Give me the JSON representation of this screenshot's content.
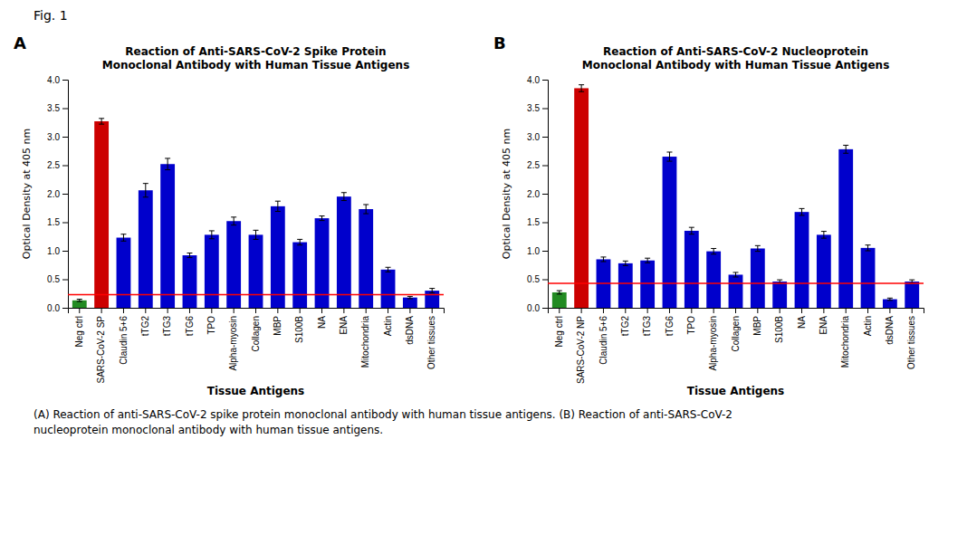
{
  "annotations": [
    "Fig. 1",
    "(A) Reaction of anti-SARS-CoV-2 spike protein monoclonal antibody with human tissue antigens. (B) Reaction of anti-SARS-CoV-2",
    "nucleoprotein monoclonal antibody with human tissue antigens."
  ],
  "chart_data": [
    {
      "type": "bar",
      "title": "Reaction of Anti-SARS-CoV-2 Spike Protein\nMonoclonal Antibody with Human Tissue Antigens",
      "annotations": [
        "A"
      ],
      "xlabel": "Tissue Antigens",
      "ylabel": "Optical Density at 405 nm",
      "categories": [
        "Neg ctrl",
        "SARS-CoV-2 SP",
        "Claudin 5+6",
        "tTG2",
        "tTG3",
        "tTG6",
        "TPO",
        "Alpha-myosin",
        "Collagen",
        "MBP",
        "S100B",
        "NA",
        "ENA",
        "Mitochondria",
        "Actin",
        "dsDNA",
        "Other tissues"
      ],
      "values": [
        0.13,
        3.27,
        1.23,
        2.06,
        2.52,
        0.92,
        1.28,
        1.52,
        1.28,
        1.78,
        1.15,
        1.57,
        1.95,
        1.73,
        0.67,
        0.18,
        0.3
      ],
      "errors": [
        0.02,
        0.05,
        0.06,
        0.12,
        0.1,
        0.04,
        0.07,
        0.07,
        0.08,
        0.09,
        0.05,
        0.04,
        0.07,
        0.08,
        0.04,
        0.02,
        0.04
      ],
      "colors": [
        "#228B22",
        "#CC0000",
        "#0000CC",
        "#0000CC",
        "#0000CC",
        "#0000CC",
        "#0000CC",
        "#0000CC",
        "#0000CC",
        "#0000CC",
        "#0000CC",
        "#0000CC",
        "#0000CC",
        "#0000CC",
        "#0000CC",
        "#0000CC",
        "#0000CC"
      ],
      "threshold": 0.23,
      "ylim": [
        0,
        4.0
      ],
      "yticks": [
        {
          "value": 0.0,
          "label": "0.0"
        },
        0.5,
        {
          "value": 1.0,
          "label": "1.0"
        },
        1.5,
        {
          "value": 2.0,
          "label": "2.0"
        },
        2.5,
        {
          "value": 3.0,
          "label": "3.0"
        },
        3.5,
        {
          "value": 4.0,
          "label": "4.0"
        }
      ]
    },
    {
      "type": "bar",
      "title": "Reaction of Anti-SARS-CoV-2 Nucleoprotein\nMonoclonal Antibody with Human Tissue Antigens",
      "annotations": [
        "B"
      ],
      "xlabel": "Tissue Antigens",
      "ylabel": "Optical Density at 405 nm",
      "categories": [
        "Neg ctrl",
        "SARS-CoV-2 NP",
        "Claudin 5+6",
        "tTG2",
        "tTG3",
        "tTG6",
        "TPO",
        "Alpha-myosin",
        "Collagen",
        "MBP",
        "S100B",
        "NA",
        "ENA",
        "Mitochondria",
        "Actin",
        "dsDNA",
        "Other tissues"
      ],
      "values": [
        0.27,
        3.85,
        0.85,
        0.78,
        0.83,
        2.65,
        1.35,
        0.99,
        0.58,
        1.04,
        0.46,
        1.68,
        1.28,
        2.78,
        1.05,
        0.15,
        0.46
      ],
      "errors": [
        0.03,
        0.06,
        0.04,
        0.04,
        0.04,
        0.08,
        0.06,
        0.05,
        0.04,
        0.05,
        0.03,
        0.06,
        0.06,
        0.07,
        0.05,
        0.02,
        0.03
      ],
      "colors": [
        "#228B22",
        "#CC0000",
        "#0000CC",
        "#0000CC",
        "#0000CC",
        "#0000CC",
        "#0000CC",
        "#0000CC",
        "#0000CC",
        "#0000CC",
        "#0000CC",
        "#0000CC",
        "#0000CC",
        "#0000CC",
        "#0000CC",
        "#0000CC",
        "#0000CC"
      ],
      "threshold": 0.43,
      "ylim": [
        0,
        4.0
      ],
      "yticks": [
        {
          "value": 0.0,
          "label": "0.0"
        },
        0.5,
        {
          "value": 1.0,
          "label": "1.0"
        },
        1.5,
        {
          "value": 2.0,
          "label": "2.0"
        },
        2.5,
        {
          "value": 3.0,
          "label": "3.0"
        },
        3.5,
        {
          "value": 4.0,
          "label": "4.0"
        }
      ]
    }
  ]
}
